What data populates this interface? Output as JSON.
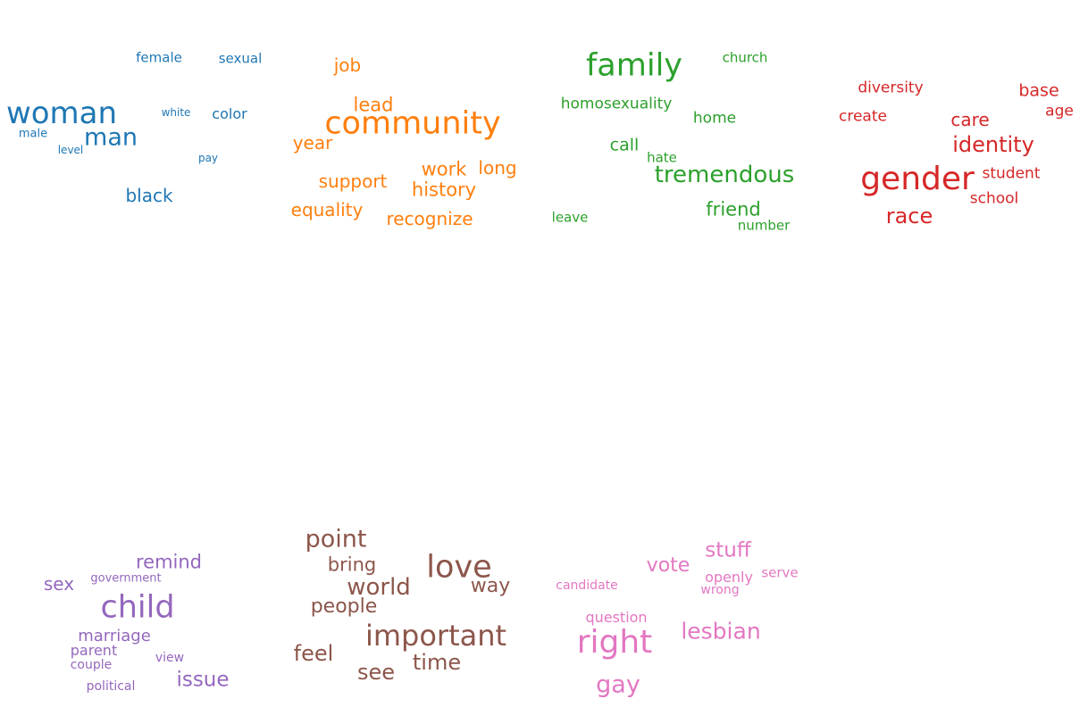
{
  "clouds": [
    {
      "id": "blue",
      "color": "#1f77b4",
      "words": [
        {
          "text": "female"
        },
        {
          "text": "sexual"
        },
        {
          "text": "woman"
        },
        {
          "text": "white"
        },
        {
          "text": "color"
        },
        {
          "text": "male"
        },
        {
          "text": "man"
        },
        {
          "text": "level"
        },
        {
          "text": "pay"
        },
        {
          "text": "black"
        }
      ]
    },
    {
      "id": "orange",
      "color": "#ff7f0e",
      "words": [
        {
          "text": "job"
        },
        {
          "text": "lead"
        },
        {
          "text": "community"
        },
        {
          "text": "year"
        },
        {
          "text": "work"
        },
        {
          "text": "long"
        },
        {
          "text": "support"
        },
        {
          "text": "history"
        },
        {
          "text": "equality"
        },
        {
          "text": "recognize"
        }
      ]
    },
    {
      "id": "green",
      "color": "#2ca02c",
      "words": [
        {
          "text": "family"
        },
        {
          "text": "church"
        },
        {
          "text": "homosexuality"
        },
        {
          "text": "home"
        },
        {
          "text": "call"
        },
        {
          "text": "hate"
        },
        {
          "text": "tremendous"
        },
        {
          "text": "friend"
        },
        {
          "text": "leave"
        },
        {
          "text": "number"
        }
      ]
    },
    {
      "id": "red",
      "color": "#d62728",
      "words": [
        {
          "text": "diversity"
        },
        {
          "text": "base"
        },
        {
          "text": "create"
        },
        {
          "text": "care"
        },
        {
          "text": "age"
        },
        {
          "text": "identity"
        },
        {
          "text": "gender"
        },
        {
          "text": "student"
        },
        {
          "text": "school"
        },
        {
          "text": "race"
        }
      ]
    },
    {
      "id": "purple",
      "color": "#9467bd",
      "words": [
        {
          "text": "remind"
        },
        {
          "text": "sex"
        },
        {
          "text": "government"
        },
        {
          "text": "child"
        },
        {
          "text": "marriage"
        },
        {
          "text": "parent"
        },
        {
          "text": "view"
        },
        {
          "text": "couple"
        },
        {
          "text": "issue"
        },
        {
          "text": "political"
        }
      ]
    },
    {
      "id": "brown",
      "color": "#8c564b",
      "words": [
        {
          "text": "point"
        },
        {
          "text": "bring"
        },
        {
          "text": "love"
        },
        {
          "text": "world"
        },
        {
          "text": "way"
        },
        {
          "text": "people"
        },
        {
          "text": "important"
        },
        {
          "text": "feel"
        },
        {
          "text": "time"
        },
        {
          "text": "see"
        }
      ]
    },
    {
      "id": "pink",
      "color": "#e377c2",
      "words": [
        {
          "text": "stuff"
        },
        {
          "text": "vote"
        },
        {
          "text": "openly"
        },
        {
          "text": "serve"
        },
        {
          "text": "candidate"
        },
        {
          "text": "wrong"
        },
        {
          "text": "question"
        },
        {
          "text": "lesbian"
        },
        {
          "text": "right"
        },
        {
          "text": "gay"
        }
      ]
    }
  ]
}
